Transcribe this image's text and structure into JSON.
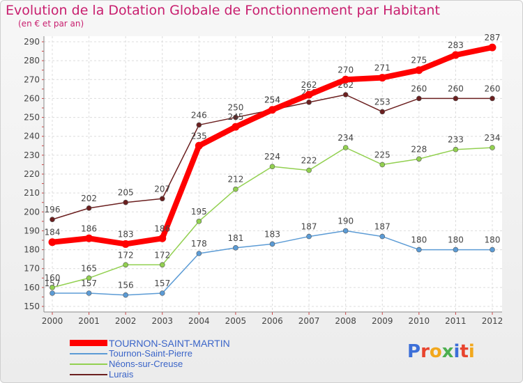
{
  "header": {
    "title": "Evolution de la Dotation Globale de Fonctionnement par Habitant",
    "subtitle": "(en € et par an)"
  },
  "logo": {
    "text": "Proxiti"
  },
  "chart_data": {
    "type": "line",
    "title": "Evolution de la Dotation Globale de Fonctionnement par Habitant",
    "subtitle": "(en € et par an)",
    "xlabel": "",
    "ylabel": "",
    "x": [
      "2000",
      "2001",
      "2002",
      "2003",
      "2004",
      "2005",
      "2006",
      "2007",
      "2008",
      "2009",
      "2010",
      "2011",
      "2012"
    ],
    "ylim": [
      150,
      290
    ],
    "yticks": [
      150,
      160,
      170,
      180,
      190,
      200,
      210,
      220,
      230,
      240,
      250,
      260,
      270,
      280,
      290
    ],
    "grid": true,
    "legend_position": "bottom-left",
    "series": [
      {
        "name": "TOURNON-SAINT-MARTIN",
        "color": "#ff0000",
        "values": [
          184,
          186,
          183,
          186,
          235,
          245,
          254,
          262,
          270,
          271,
          275,
          283,
          287
        ]
      },
      {
        "name": "Tournon-Saint-Pierre",
        "color": "#5b9bd5",
        "values": [
          157,
          157,
          156,
          157,
          178,
          181,
          183,
          187,
          190,
          187,
          180,
          180,
          180
        ]
      },
      {
        "name": "Néons-sur-Creuse",
        "color": "#92d050",
        "values": [
          160,
          165,
          172,
          172,
          195,
          212,
          224,
          222,
          234,
          225,
          228,
          233,
          234
        ]
      },
      {
        "name": "Lurais",
        "color": "#6b1f1f",
        "values": [
          196,
          202,
          205,
          207,
          246,
          250,
          254,
          258,
          262,
          253,
          260,
          260,
          260
        ]
      }
    ]
  }
}
